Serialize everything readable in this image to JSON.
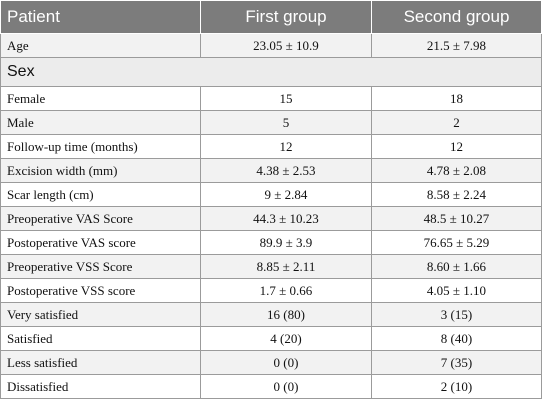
{
  "header": {
    "col1": "Patient",
    "col2": "First group",
    "col3": "Second group"
  },
  "rows_top": [
    {
      "label": "Age",
      "first": "23.05 ± 10.9",
      "second": "21.5 ± 7.98"
    }
  ],
  "section_label": "Sex",
  "rows": [
    {
      "label": "Female",
      "first": "15",
      "second": "18"
    },
    {
      "label": "Male",
      "first": "5",
      "second": "2"
    },
    {
      "label": "Follow-up time (months)",
      "first": "12",
      "second": "12"
    },
    {
      "label": "Excision width (mm)",
      "first": "4.38 ± 2.53",
      "second": "4.78 ± 2.08"
    },
    {
      "label": "Scar length (cm)",
      "first": "9 ± 2.84",
      "second": "8.58 ± 2.24"
    },
    {
      "label": "Preoperative VAS Score",
      "first": "44.3 ± 10.23",
      "second": "48.5 ± 10.27"
    },
    {
      "label": "Postoperative VAS score",
      "first": "89.9 ± 3.9",
      "second": "76.65 ± 5.29"
    },
    {
      "label": "Preoperative VSS Score",
      "first": "8.85 ± 2.11",
      "second": "8.60 ± 1.66"
    },
    {
      "label": "Postoperative VSS score",
      "first": "1.7 ± 0.66",
      "second": "4.05 ± 1.10"
    },
    {
      "label": "Very satisfied",
      "first": "16 (80)",
      "second": "3 (15)"
    },
    {
      "label": "Satisfied",
      "first": "4 (20)",
      "second": "8 (40)"
    },
    {
      "label": "Less satisfied",
      "first": "0 (0)",
      "second": "7 (35)"
    },
    {
      "label": "Dissatisfied",
      "first": "0 (0)",
      "second": "2 (10)"
    }
  ]
}
